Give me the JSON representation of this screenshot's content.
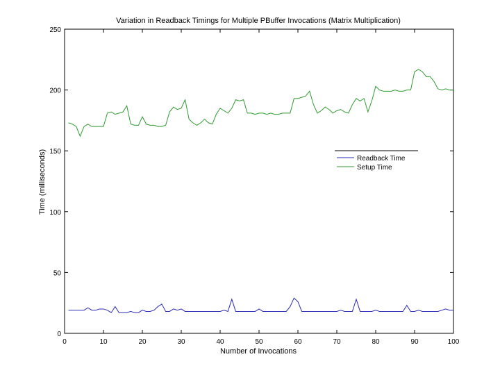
{
  "chart_data": {
    "type": "line",
    "title": "Variation in Readback Timings for Multiple PBuffer Invocations (Matrix Multiplication)",
    "xlabel": "Number of Invocations",
    "ylabel": "Time (milliseconds)",
    "xlim": [
      0,
      100
    ],
    "ylim": [
      0,
      250
    ],
    "xticks": [
      0,
      10,
      20,
      30,
      40,
      50,
      60,
      70,
      80,
      90,
      100
    ],
    "yticks": [
      0,
      50,
      100,
      150,
      200,
      250
    ],
    "grid": false,
    "legend_position": "right-center",
    "x": [
      1,
      2,
      3,
      4,
      5,
      6,
      7,
      8,
      9,
      10,
      11,
      12,
      13,
      14,
      15,
      16,
      17,
      18,
      19,
      20,
      21,
      22,
      23,
      24,
      25,
      26,
      27,
      28,
      29,
      30,
      31,
      32,
      33,
      34,
      35,
      36,
      37,
      38,
      39,
      40,
      41,
      42,
      43,
      44,
      45,
      46,
      47,
      48,
      49,
      50,
      51,
      52,
      53,
      54,
      55,
      56,
      57,
      58,
      59,
      60,
      61,
      62,
      63,
      64,
      65,
      66,
      67,
      68,
      69,
      70,
      71,
      72,
      73,
      74,
      75,
      76,
      77,
      78,
      79,
      80,
      81,
      82,
      83,
      84,
      85,
      86,
      87,
      88,
      89,
      90,
      91,
      92,
      93,
      94,
      95,
      96,
      97,
      98,
      99,
      100
    ],
    "series": [
      {
        "name": "Readback Time",
        "color": "#2a2ab8",
        "values": [
          19,
          19,
          19,
          19,
          19,
          21,
          19,
          19,
          20,
          20,
          19,
          17,
          22,
          17,
          17,
          17,
          18,
          17,
          17,
          19,
          18,
          18,
          19,
          22,
          24,
          18,
          18,
          20,
          19,
          20,
          18,
          18,
          18,
          18,
          18,
          18,
          18,
          18,
          18,
          18,
          19,
          18,
          28,
          18,
          18,
          18,
          18,
          18,
          18,
          20,
          18,
          18,
          18,
          18,
          18,
          18,
          18,
          22,
          29,
          26,
          18,
          18,
          18,
          18,
          18,
          18,
          18,
          18,
          18,
          18,
          19,
          18,
          18,
          18,
          28,
          18,
          18,
          18,
          18,
          19,
          18,
          18,
          18,
          18,
          18,
          18,
          18,
          23,
          18,
          18,
          19,
          18,
          18,
          18,
          18,
          18,
          19,
          20,
          19,
          19
        ]
      },
      {
        "name": "Setup Time",
        "color": "#2f9a2f",
        "values": [
          173,
          172,
          170,
          162,
          170,
          172,
          170,
          170,
          170,
          170,
          181,
          182,
          180,
          181,
          182,
          187,
          172,
          171,
          171,
          178,
          172,
          171,
          171,
          170,
          170,
          171,
          182,
          186,
          184,
          185,
          192,
          176,
          173,
          171,
          173,
          176,
          173,
          172,
          180,
          185,
          183,
          181,
          185,
          192,
          191,
          192,
          181,
          181,
          180,
          181,
          181,
          180,
          181,
          180,
          180,
          181,
          181,
          181,
          193,
          193,
          194,
          195,
          199,
          188,
          181,
          183,
          186,
          184,
          181,
          183,
          184,
          182,
          181,
          188,
          193,
          191,
          193,
          182,
          191,
          203,
          200,
          199,
          199,
          199,
          200,
          199,
          199,
          200,
          200,
          215,
          217,
          215,
          211,
          211,
          207,
          201,
          200,
          201,
          200,
          200
        ]
      }
    ]
  }
}
